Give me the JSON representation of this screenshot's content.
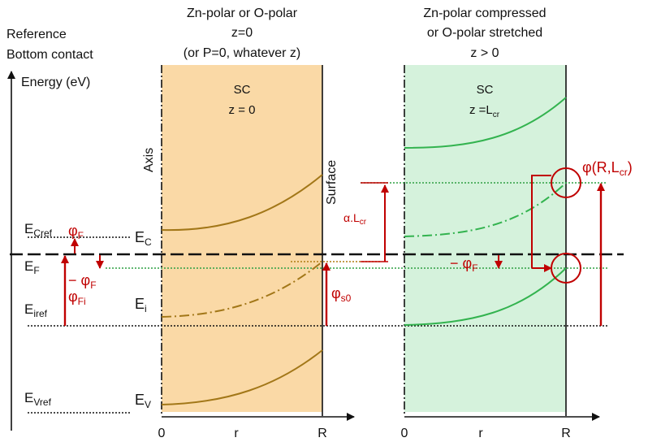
{
  "header": {
    "left_line1": "Reference",
    "left_line2": "Bottom contact",
    "mid_line1": "Zn-polar or O-polar",
    "mid_line2": "z=0",
    "mid_line3": "(or P=0, whatever z)",
    "right_line1": "Zn-polar compressed",
    "right_line2": "or O-polar stretched",
    "right_line3": "z > 0"
  },
  "axis_title": "Energy (eV)",
  "mid_panel": {
    "title": "SC",
    "z_label": "z = 0",
    "axis_label": "Axis",
    "surface_label": "Surface",
    "ec_label": "E",
    "ec_sub": "C",
    "ei_label": "E",
    "ei_sub": "i",
    "ev_label": "E",
    "ev_sub": "V",
    "x_ticks": [
      "0",
      "r",
      "R"
    ],
    "fill_color": "#fad9a6",
    "band_color": "#a27718"
  },
  "right_panel": {
    "title": "SC",
    "z_label": "z =L",
    "z_sub": "cr",
    "x_ticks": [
      "0",
      "r",
      "R"
    ],
    "fill_color": "#d5f2dc",
    "band_color": "#33b34f"
  },
  "left_levels": {
    "ecref": "E",
    "ecref_sub": "Cref",
    "ef": "E",
    "ef_sub": "F",
    "eiref": "E",
    "eiref_sub": "iref",
    "evref": "E",
    "evref_sub": "Vref"
  },
  "annotations": {
    "phi_f": "φ",
    "phi_f_sub": "F",
    "minus_phi_f": "− φ",
    "minus_phi_f_sub": "F",
    "phi_fi": "φ",
    "phi_fi_sub": "Fi",
    "phi_s0": "φ",
    "phi_s0_sub": "s0",
    "alpha_l": "α.L",
    "alpha_l_sub": "cr",
    "minus_phi_f2": "− φ",
    "minus_phi_f2_sub": "F",
    "phi_rl": "φ(R,L",
    "phi_rl_sub": "cr",
    "phi_rl_close": ")"
  },
  "colors": {
    "red": "#c00000",
    "green_dotted": "#2ea043",
    "black": "#111111"
  }
}
